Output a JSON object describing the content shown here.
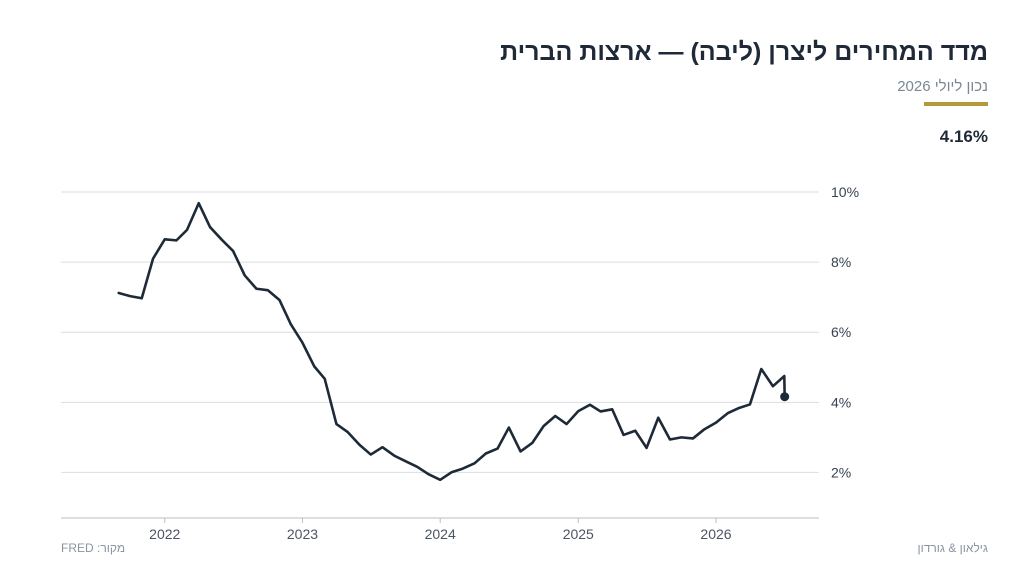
{
  "header": {
    "title": "מדד המחירים ליצרן (ליבה) — ארצות הברית",
    "subtitle": "נכון ליולי 2026",
    "current_value": "4.16%"
  },
  "footer": {
    "source": "מקור: FRED",
    "brand": "גילאון & גורדון"
  },
  "colors": {
    "line": "#1e2a38",
    "accent": "#b39a3a",
    "grid": "#d9dde2",
    "axis": "#b8bec6"
  },
  "chart_data": {
    "type": "line",
    "title": "מדד המחירים ליצרן (ליבה) — ארצות הברית",
    "xlabel": "",
    "ylabel": "",
    "y_ticks": [
      2,
      4,
      6,
      8,
      10
    ],
    "y_tick_labels": [
      "2%",
      "4%",
      "6%",
      "8%",
      "10%"
    ],
    "ylim": [
      0.7,
      10.4
    ],
    "x_ticks": [
      "2022-01-01",
      "2023-01-01",
      "2024-01-01",
      "2025-01-01",
      "2026-01-01"
    ],
    "x_tick_labels": [
      "2022",
      "2023",
      "2024",
      "2025",
      "2026"
    ],
    "xlim": [
      "2021-04-01",
      "2026-10-01"
    ],
    "grid": true,
    "legend": "none",
    "series": [
      {
        "name": "",
        "points": [
          [
            "2021-09-01",
            7.12
          ],
          [
            "2021-10-01",
            7.03
          ],
          [
            "2021-11-01",
            6.97
          ],
          [
            "2021-12-01",
            8.1
          ],
          [
            "2022-01-01",
            8.65
          ],
          [
            "2022-02-01",
            8.62
          ],
          [
            "2022-03-01",
            8.92
          ],
          [
            "2022-04-01",
            9.68
          ],
          [
            "2022-05-01",
            9.0
          ],
          [
            "2022-06-01",
            8.64
          ],
          [
            "2022-07-01",
            8.32
          ],
          [
            "2022-08-01",
            7.62
          ],
          [
            "2022-09-01",
            7.24
          ],
          [
            "2022-10-01",
            7.2
          ],
          [
            "2022-11-01",
            6.92
          ],
          [
            "2022-12-01",
            6.23
          ],
          [
            "2023-01-01",
            5.7
          ],
          [
            "2023-02-01",
            5.03
          ],
          [
            "2023-03-01",
            4.67
          ],
          [
            "2023-04-01",
            3.38
          ],
          [
            "2023-05-01",
            3.15
          ],
          [
            "2023-06-01",
            2.79
          ],
          [
            "2023-07-01",
            2.51
          ],
          [
            "2023-08-01",
            2.72
          ],
          [
            "2023-09-01",
            2.48
          ],
          [
            "2023-10-01",
            2.32
          ],
          [
            "2023-11-01",
            2.16
          ],
          [
            "2023-12-01",
            1.95
          ],
          [
            "2024-01-01",
            1.79
          ],
          [
            "2024-02-01",
            2.01
          ],
          [
            "2024-03-01",
            2.11
          ],
          [
            "2024-04-01",
            2.26
          ],
          [
            "2024-05-01",
            2.54
          ],
          [
            "2024-06-01",
            2.68
          ],
          [
            "2024-07-01",
            3.28
          ],
          [
            "2024-08-01",
            2.6
          ],
          [
            "2024-09-01",
            2.84
          ],
          [
            "2024-10-01",
            3.32
          ],
          [
            "2024-11-01",
            3.61
          ],
          [
            "2024-12-01",
            3.38
          ],
          [
            "2025-01-01",
            3.75
          ],
          [
            "2025-02-01",
            3.93
          ],
          [
            "2025-03-01",
            3.74
          ],
          [
            "2025-04-01",
            3.8
          ],
          [
            "2025-05-01",
            3.07
          ],
          [
            "2025-06-01",
            3.19
          ],
          [
            "2025-07-01",
            2.7
          ],
          [
            "2025-08-01",
            3.56
          ],
          [
            "2025-09-01",
            2.94
          ],
          [
            "2025-10-01",
            3.0
          ],
          [
            "2025-11-01",
            2.97
          ],
          [
            "2025-12-01",
            3.23
          ],
          [
            "2026-01-01",
            3.42
          ],
          [
            "2026-02-01",
            3.69
          ],
          [
            "2026-03-01",
            3.83
          ],
          [
            "2026-04-01",
            3.94
          ],
          [
            "2026-05-01",
            4.95
          ],
          [
            "2026-06-01",
            4.46
          ],
          [
            "2026-07-01",
            4.75
          ],
          [
            "2026-07-02",
            4.16
          ]
        ]
      }
    ],
    "last_point": [
      "2026-07-02",
      4.16
    ]
  }
}
